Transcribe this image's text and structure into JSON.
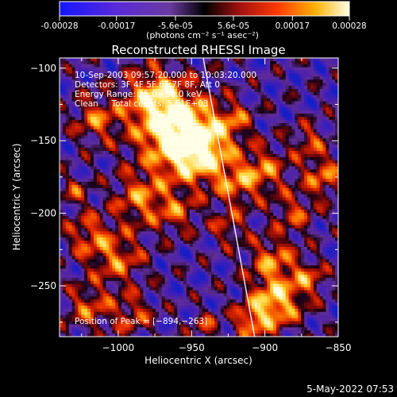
{
  "colorbar": {
    "tick_labels": [
      "-0.00028",
      "-0.00017",
      "-5.6e-05",
      "5.6e-05",
      "0.00017",
      "0.00028"
    ],
    "tick_values": [
      -0.00028,
      -0.00017,
      -5.6e-05,
      5.6e-05,
      0.00017,
      0.00028
    ],
    "unit_label": "(photons cm⁻² s⁻¹ asec⁻²)",
    "range": [
      -0.00028,
      0.00028
    ]
  },
  "chart_data": {
    "type": "heatmap",
    "title": "Reconstructed RHESSI Image",
    "xlabel": "Heliocentric X (arcsec)",
    "ylabel": "Heliocentric Y (arcsec)",
    "xlim": [
      -1040,
      -850
    ],
    "ylim": [
      -285,
      -93
    ],
    "x_ticks": [
      -1000,
      -950,
      -900,
      -850
    ],
    "x_tick_labels": [
      "−1000",
      "−950",
      "−900",
      "−850"
    ],
    "y_ticks": [
      -100,
      -150,
      -200,
      -250
    ],
    "y_tick_labels": [
      "−100",
      "−150",
      "−200",
      "−250"
    ],
    "peak_position": [
      -894,
      -263
    ],
    "limb_line": [
      [
        -942,
        -93
      ],
      [
        -907,
        -285
      ]
    ],
    "annotations": [
      "10-Sep-2003 09:57:20.000 to 10:03:20.000",
      "Detectors: 3F 4F 5F 6F 7F 8F, Att 0",
      "Energy Range: 25.0 - 50.0 keV",
      "Clean     Total counts: 5.61E+03",
      "Position of Peak = [−894,−263]"
    ],
    "colormap": "rhessi-blue-purple-red-yellow-white"
  },
  "footer": {
    "date": "5-May-2022 07:53"
  }
}
